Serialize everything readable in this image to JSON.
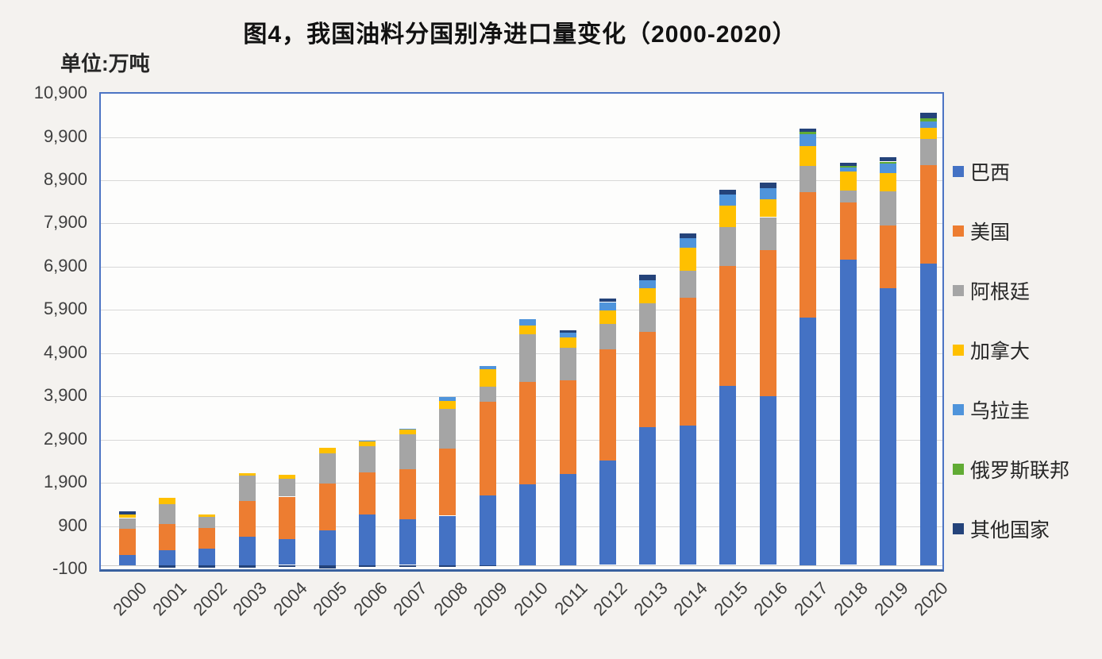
{
  "page": {
    "background": "#F4F2EF"
  },
  "chart_data": {
    "type": "bar",
    "stacked": true,
    "title": "图4，我国油料分国别净进口量变化（2000-2020）",
    "unit_label": "单位:万吨",
    "grid": true,
    "legend_position": "right",
    "ylim": [
      -100,
      10900
    ],
    "ytick_step": 1000,
    "yticks": [
      "-100",
      "900",
      "1,900",
      "2,900",
      "3,900",
      "4,900",
      "5,900",
      "6,900",
      "7,900",
      "8,900",
      "9,900",
      "10,900"
    ],
    "categories": [
      "2000",
      "2001",
      "2002",
      "2003",
      "2004",
      "2005",
      "2006",
      "2007",
      "2008",
      "2009",
      "2010",
      "2011",
      "2012",
      "2013",
      "2014",
      "2015",
      "2016",
      "2017",
      "2018",
      "2019",
      "2020"
    ],
    "series": [
      {
        "id": "brazil",
        "name": "巴西",
        "color": "#4472C4",
        "values": [
          230,
          340,
          380,
          650,
          590,
          800,
          1160,
          1060,
          1140,
          1610,
          1860,
          2100,
          2410,
          3190,
          3220,
          4140,
          3910,
          5720,
          7060,
          6400,
          6970
        ]
      },
      {
        "id": "usa",
        "name": "美国",
        "color": "#ED7D31",
        "values": [
          610,
          600,
          470,
          830,
          990,
          1090,
          980,
          1160,
          1560,
          2160,
          2370,
          2170,
          2570,
          2200,
          2970,
          2770,
          3370,
          2900,
          1320,
          1460,
          2280
        ]
      },
      {
        "id": "argentina",
        "name": "阿根廷",
        "color": "#A5A5A5",
        "values": [
          245,
          460,
          270,
          580,
          420,
          700,
          600,
          800,
          910,
          350,
          1100,
          750,
          590,
          660,
          615,
          905,
          765,
          610,
          275,
          780,
          610
        ]
      },
      {
        "id": "canada",
        "name": "加拿大",
        "color": "#FFC000",
        "values": [
          80,
          150,
          40,
          60,
          85,
          120,
          110,
          110,
          185,
          400,
          200,
          235,
          325,
          350,
          525,
          490,
          410,
          460,
          450,
          430,
          245
        ]
      },
      {
        "id": "uruguay",
        "name": "乌拉圭",
        "color": "#4F94DB",
        "values": [
          0,
          0,
          0,
          0,
          0,
          0,
          20,
          20,
          90,
          90,
          150,
          120,
          185,
          185,
          230,
          270,
          265,
          275,
          90,
          220,
          160
        ]
      },
      {
        "id": "russia",
        "name": "俄罗斯联邦",
        "color": "#61AB34",
        "values": [
          0,
          0,
          0,
          0,
          0,
          0,
          0,
          0,
          0,
          0,
          0,
          0,
          0,
          0,
          0,
          0,
          0,
          50,
          40,
          40,
          60
        ]
      },
      {
        "id": "others",
        "name": "其他国家",
        "color": "#24437A",
        "values": [
          85,
          -70,
          -60,
          -70,
          -50,
          -80,
          -40,
          -40,
          -40,
          -30,
          0,
          50,
          75,
          120,
          100,
          100,
          120,
          75,
          65,
          100,
          135
        ]
      }
    ]
  }
}
